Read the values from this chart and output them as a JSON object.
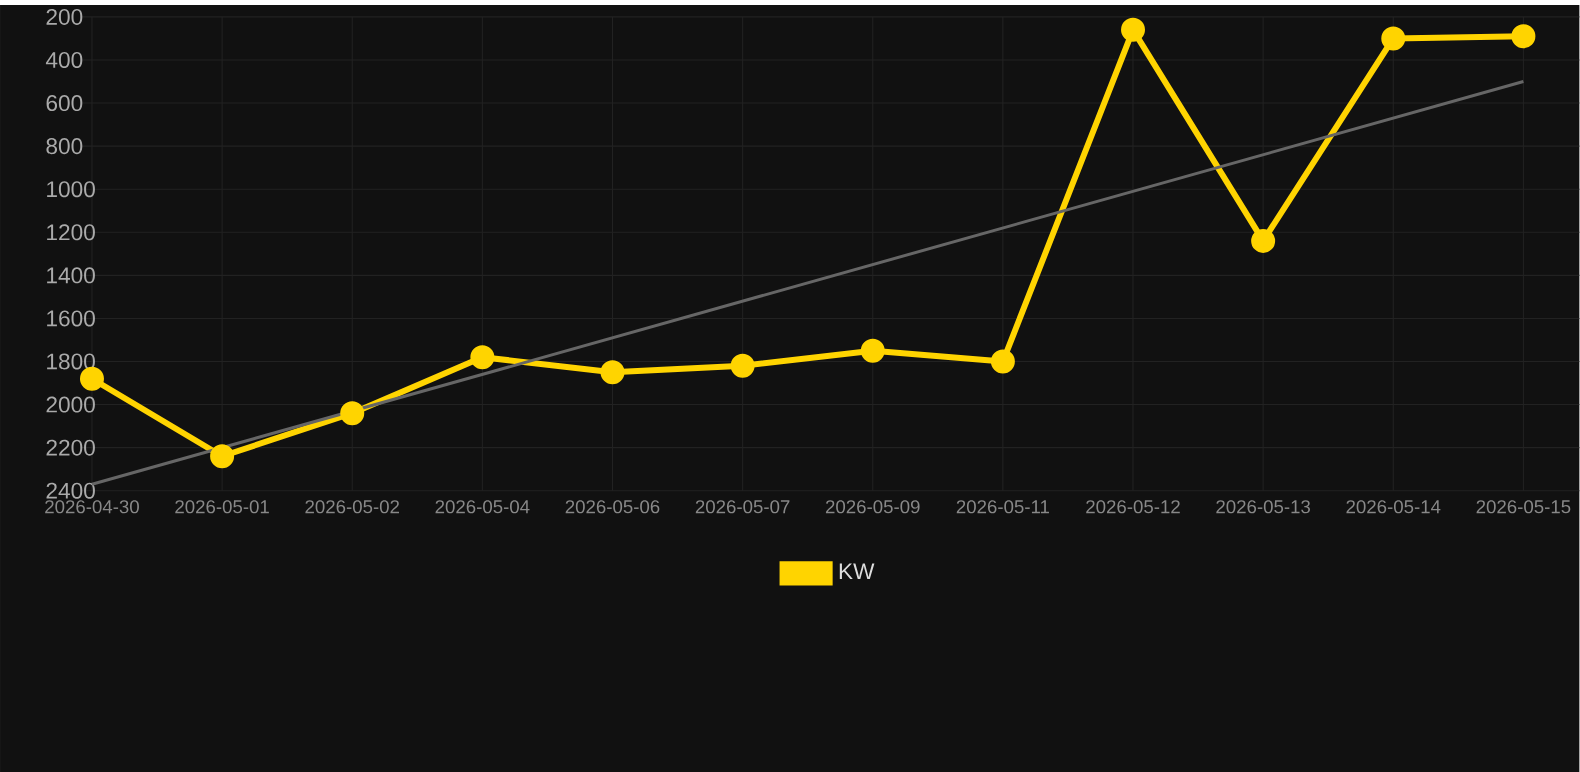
{
  "chart_data": {
    "type": "line",
    "categories": [
      "2026-04-30",
      "2026-05-01",
      "2026-05-02",
      "2026-05-04",
      "2026-05-06",
      "2026-05-07",
      "2026-05-09",
      "2026-05-11",
      "2026-05-12",
      "2026-05-13",
      "2026-05-14",
      "2026-05-15"
    ],
    "series": [
      {
        "name": "KW",
        "color": "#ffd400",
        "values": [
          1880,
          2240,
          2040,
          1780,
          1850,
          1820,
          1750,
          1800,
          260,
          1240,
          300,
          290
        ]
      },
      {
        "type": "line",
        "color": "#666666",
        "marker": "none",
        "values": [
          2370,
          null,
          null,
          null,
          null,
          null,
          null,
          null,
          null,
          null,
          null,
          500
        ]
      }
    ],
    "ylim": [
      2400,
      200
    ],
    "yticks": [
      200,
      400,
      600,
      800,
      1000,
      1200,
      1400,
      1600,
      1800,
      2000,
      2200,
      2400
    ],
    "grid": true,
    "legend": "bottom",
    "marker": "circle",
    "line_style": "solid"
  }
}
